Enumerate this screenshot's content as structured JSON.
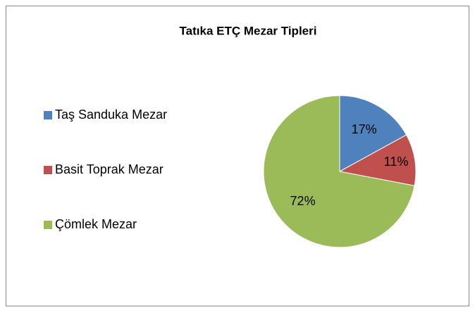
{
  "chart_data": {
    "type": "pie",
    "title": "Tatıka ETÇ Mezar Tipleri",
    "categories": [
      "Taş Sanduka Mezar",
      "Basit Toprak Mezar",
      "Çömlek Mezar"
    ],
    "values": [
      17,
      11,
      72
    ],
    "value_labels": [
      "17%",
      "11%",
      "72%"
    ],
    "colors": [
      "#4f81bd",
      "#c0504d",
      "#9bbb59"
    ],
    "legend": "left"
  }
}
